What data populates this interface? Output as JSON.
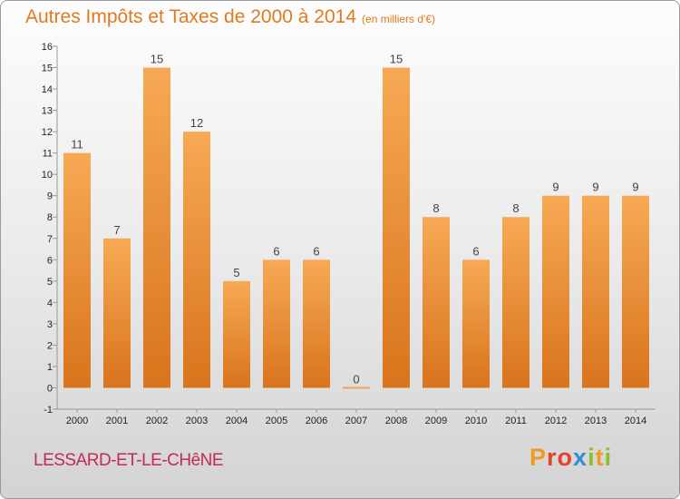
{
  "header": {
    "title": "Autres Impôts et Taxes de 2000 à 2014",
    "unit": "(en milliers d'€)"
  },
  "footer": {
    "commune": "LESSARD-ET-LE-CHêNE",
    "logo_letters": [
      "P",
      "r",
      "o",
      "x",
      "i",
      "t",
      "i"
    ],
    "logo_colors": [
      "#f29a1f",
      "#e6402a",
      "#e6402a",
      "#2a8fd4",
      "#8cbf2e",
      "#f29a1f",
      "#8cbf2e"
    ]
  },
  "chart_data": {
    "type": "bar",
    "title": "Autres Impôts et Taxes de 2000 à 2014",
    "subtitle": "(en milliers d'€)",
    "categories": [
      "2000",
      "2001",
      "2002",
      "2003",
      "2004",
      "2005",
      "2006",
      "2007",
      "2008",
      "2009",
      "2010",
      "2011",
      "2012",
      "2013",
      "2014"
    ],
    "values": [
      11,
      7,
      15,
      12,
      5,
      6,
      6,
      0,
      15,
      8,
      6,
      8,
      9,
      9,
      9
    ],
    "ylim": [
      -1,
      16
    ],
    "yticks": [
      -1,
      0,
      1,
      2,
      3,
      4,
      5,
      6,
      7,
      8,
      9,
      10,
      11,
      12,
      13,
      14,
      15,
      16
    ],
    "grid": false,
    "colors": {
      "bar_top": "#f7a955",
      "bar_bottom": "#d8741c",
      "zero_bar": "#f0a050"
    }
  }
}
